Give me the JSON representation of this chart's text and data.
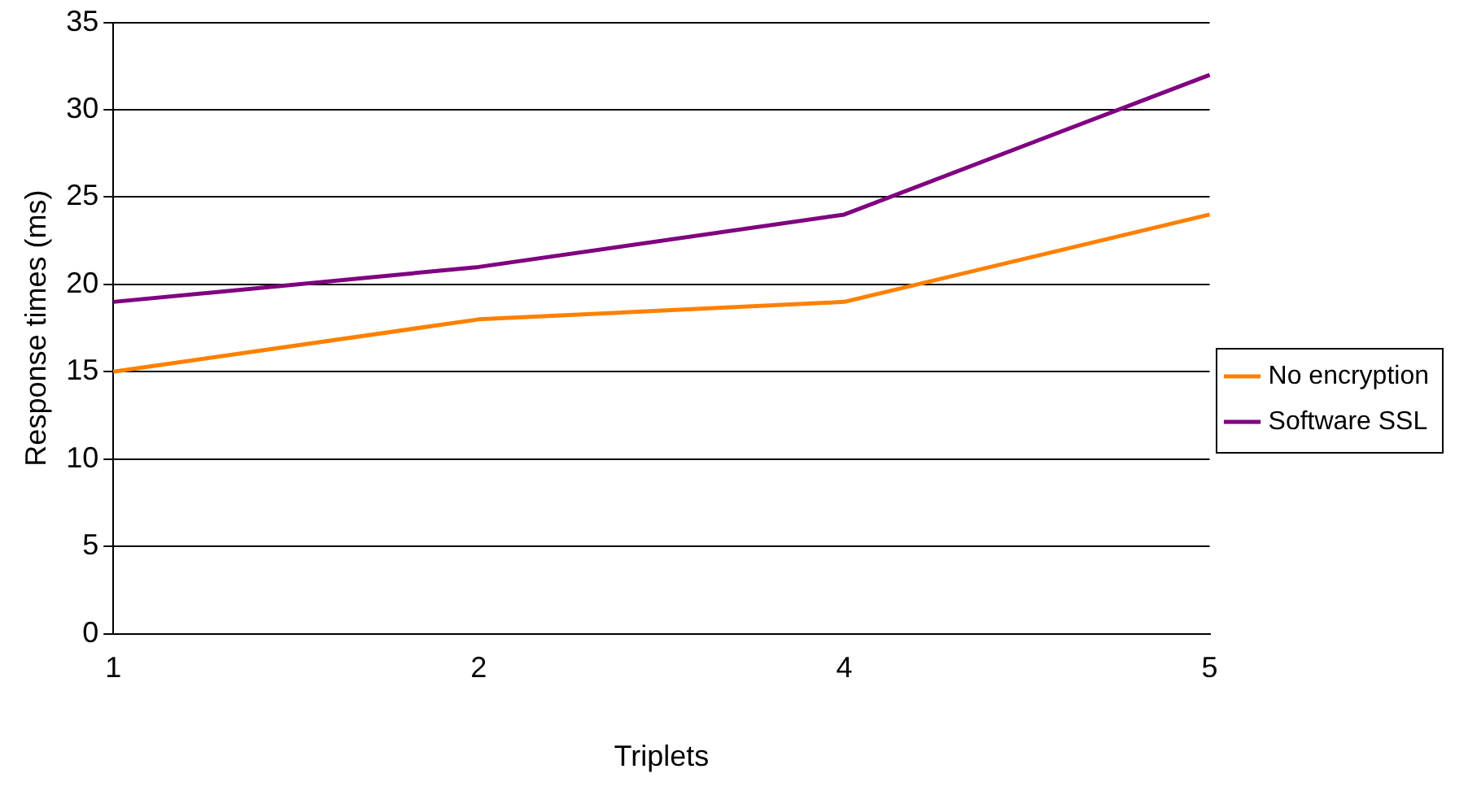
{
  "chart_data": {
    "type": "line",
    "xlabel": "Triplets",
    "ylabel": "Response times (ms)",
    "categories": [
      "1",
      "2",
      "4",
      "5"
    ],
    "series": [
      {
        "name": "No encryption",
        "color": "#ff8000",
        "values": [
          15,
          18,
          19,
          24
        ]
      },
      {
        "name": "Software SSL",
        "color": "#800080",
        "values": [
          19,
          21,
          24,
          32
        ]
      }
    ],
    "ylim": [
      0,
      35
    ],
    "yticks": [
      0,
      5,
      10,
      15,
      20,
      25,
      30,
      35
    ],
    "grid": "y",
    "legend": "right",
    "marker": "none",
    "line_style": "solid"
  }
}
